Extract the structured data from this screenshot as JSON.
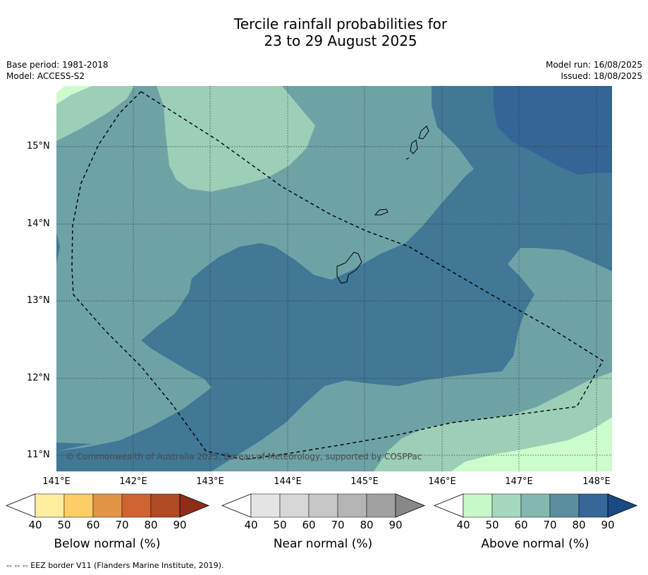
{
  "title_line1": "Tercile rainfall probabilities for",
  "title_line2": "23 to 29 August 2025",
  "base_period": "Base period: 1981-2018",
  "model": "Model: ACCESS-S2",
  "model_run": "Model run: 16/08/2025",
  "issued": "Issued: 18/08/2025",
  "copyright": "© Commonwealth of Australia 2025, Bureau of Meteorology, supported by COSPPac",
  "lat_labels": [
    "15°N",
    "14°N",
    "13°N",
    "12°N",
    "11°N"
  ],
  "lon_labels": [
    "141°E",
    "142°E",
    "143°E",
    "144°E",
    "145°E",
    "146°E",
    "147°E",
    "148°E"
  ],
  "colorbars": [
    {
      "label": "Below normal (%)",
      "ticks": [
        "40",
        "50",
        "60",
        "70",
        "80",
        "90"
      ],
      "colors": [
        "#ffffff",
        "#fdeea0",
        "#fdcd66",
        "#e29546",
        "#cf6432",
        "#b04a25",
        "#8c2d18"
      ]
    },
    {
      "label": "Near normal (%)",
      "ticks": [
        "40",
        "50",
        "60",
        "70",
        "80",
        "90"
      ],
      "colors": [
        "#ffffff",
        "#e4e4e4",
        "#d7d7d7",
        "#c7c7c7",
        "#b4b4b4",
        "#a0a0a0",
        "#888888"
      ]
    },
    {
      "label": "Above normal (%)",
      "ticks": [
        "40",
        "50",
        "60",
        "70",
        "80",
        "90"
      ],
      "colors": [
        "#ffffff",
        "#c8f7c8",
        "#a3d8bd",
        "#82b8af",
        "#5b8fa0",
        "#356799",
        "#1a4a84"
      ]
    }
  ],
  "footer": "--  --  -- EEZ border V11 (Flanders Marine Institute, 2019).",
  "map_colors": {
    "lightest": "#ccfccc",
    "light": "#9dcfb8",
    "mid": "#6ea3a6",
    "dark": "#407896",
    "darkest": "#336596"
  }
}
